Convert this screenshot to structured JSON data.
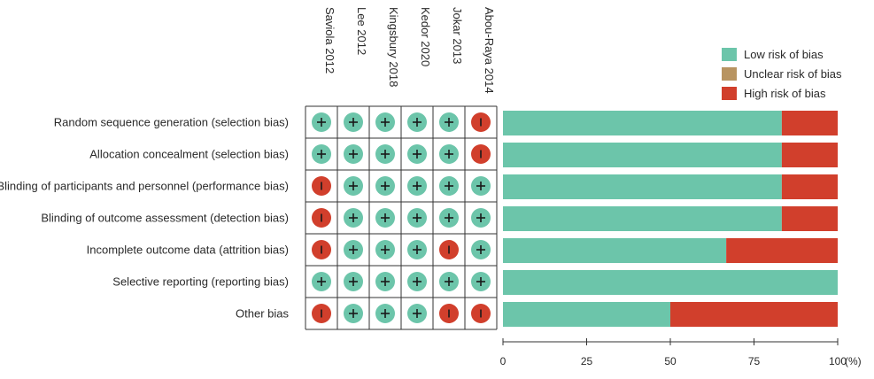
{
  "chart_data": [
    {
      "type": "table",
      "studies": [
        "Saviola 2012",
        "Lee 2012",
        "Kingsbury 2018",
        "Kedor 2020",
        "Jokar 2013",
        "Abou-Raya  2014"
      ],
      "domains": [
        "Random sequence generation (selection bias)",
        "Allocation concealment (selection bias)",
        "Blinding of participants and personnel (performance bias)",
        "Blinding of outcome assessment (detection bias)",
        "Incomplete outcome data (attrition bias)",
        "Selective reporting (reporting bias)",
        "Other bias"
      ],
      "judgements": [
        [
          "low",
          "low",
          "low",
          "low",
          "low",
          "high"
        ],
        [
          "low",
          "low",
          "low",
          "low",
          "low",
          "high"
        ],
        [
          "high",
          "low",
          "low",
          "low",
          "low",
          "low"
        ],
        [
          "high",
          "low",
          "low",
          "low",
          "low",
          "low"
        ],
        [
          "high",
          "low",
          "low",
          "low",
          "high",
          "low"
        ],
        [
          "low",
          "low",
          "low",
          "low",
          "low",
          "low"
        ],
        [
          "high",
          "low",
          "low",
          "low",
          "high",
          "high"
        ]
      ],
      "symbols": {
        "low": "+",
        "high": "−"
      }
    },
    {
      "type": "bar",
      "orientation": "horizontal",
      "stacked": true,
      "categories": [
        "Random sequence generation (selection bias)",
        "Allocation concealment (selection bias)",
        "Blinding of participants and personnel (performance bias)",
        "Blinding of outcome assessment (detection bias)",
        "Incomplete outcome data (attrition bias)",
        "Selective reporting (reporting bias)",
        "Other bias"
      ],
      "series": [
        {
          "name": "Low risk of bias",
          "color": "#6cc5aa",
          "values": [
            83.3,
            83.3,
            83.3,
            83.3,
            66.7,
            100,
            50
          ]
        },
        {
          "name": "Unclear risk of bias",
          "color": "#b89461",
          "values": [
            0,
            0,
            0,
            0,
            0,
            0,
            0
          ]
        },
        {
          "name": "High risk of bias",
          "color": "#d13f2c",
          "values": [
            16.7,
            16.7,
            16.7,
            16.7,
            33.3,
            0,
            50
          ]
        }
      ],
      "xlim": [
        0,
        100
      ],
      "xticks": [
        "0",
        "25",
        "50",
        "75",
        "100"
      ],
      "xunit": "(%)",
      "legend_position": "top-right"
    }
  ]
}
